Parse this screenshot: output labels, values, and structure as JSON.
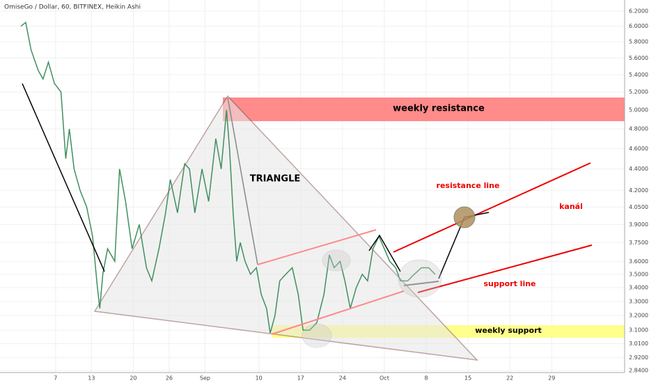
{
  "chart_data": {
    "type": "line",
    "title": "OmiseGo / Dollar, 60, BITFINEX, Heikin Ashi",
    "annotations": [
      "weekly resistance",
      "TRIANGLE",
      "resistance line",
      "kanál",
      "support line",
      "weekly support"
    ],
    "color": "#3f8f5f",
    "log_scale": true,
    "grid": true,
    "x": [
      0.2,
      1.0,
      1.9,
      3.1,
      3.9,
      4.8,
      5.8,
      6.9,
      7.7,
      8.3,
      9.1,
      10.1,
      11.2,
      12.2,
      13.0,
      13.4,
      13.9,
      14.7,
      15.9,
      16.7,
      17.7,
      18.8,
      20.0,
      21.2,
      22.1,
      23.3,
      24.4,
      25.2,
      26.4,
      27.6,
      28.4,
      29.3,
      30.5,
      31.6,
      32.8,
      33.7,
      34.6,
      35.1,
      35.7,
      36.3,
      36.9,
      37.7,
      38.6,
      39.6,
      40.4,
      41.3,
      41.9,
      42.7,
      43.5,
      44.5,
      45.6,
      46.6,
      47.4,
      48.5,
      49.7,
      50.9,
      51.8,
      52.6,
      53.6,
      54.4,
      55.3,
      56.3,
      57.3,
      58.2,
      59.1,
      60.1,
      61.0,
      61.9,
      62.9,
      63.7,
      64.9,
      66.0,
      67.2,
      68.4,
      69.5
    ],
    "values": [
      6.0,
      6.05,
      5.7,
      5.45,
      5.35,
      5.55,
      5.3,
      5.2,
      4.5,
      4.8,
      4.4,
      4.2,
      4.05,
      3.8,
      3.4,
      3.25,
      3.5,
      3.7,
      3.6,
      4.4,
      4.1,
      3.7,
      3.9,
      3.55,
      3.45,
      3.7,
      4.0,
      4.3,
      4.0,
      4.45,
      4.4,
      4.0,
      4.4,
      4.1,
      4.7,
      4.4,
      5.0,
      4.6,
      4.0,
      3.6,
      3.75,
      3.6,
      3.5,
      3.55,
      3.35,
      3.25,
      3.08,
      3.2,
      3.45,
      3.5,
      3.55,
      3.35,
      3.1,
      3.1,
      3.15,
      3.35,
      3.65,
      3.55,
      3.6,
      3.45,
      3.25,
      3.4,
      3.5,
      3.45,
      3.7,
      3.8,
      3.7,
      3.6,
      3.55,
      3.45,
      3.45,
      3.5,
      3.55,
      3.55,
      3.5
    ],
    "xlim": [
      -3.3,
      101.2
    ],
    "xticks": [
      {
        "value": 6,
        "label": "7"
      },
      {
        "value": 12,
        "label": "13"
      },
      {
        "value": 19,
        "label": "20"
      },
      {
        "value": 25,
        "label": "26"
      },
      {
        "value": 31,
        "label": "Sep"
      },
      {
        "value": 40,
        "label": "10"
      },
      {
        "value": 47,
        "label": "17"
      },
      {
        "value": 54,
        "label": "24"
      },
      {
        "value": 61,
        "label": "Oct"
      },
      {
        "value": 68,
        "label": "8"
      },
      {
        "value": 75,
        "label": "15"
      },
      {
        "value": 82,
        "label": "22"
      },
      {
        "value": 89,
        "label": "29"
      }
    ],
    "ylim": [
      2.827,
      6.352
    ],
    "yticks": [
      {
        "value": 2.84,
        "label": "2.8400"
      },
      {
        "value": 2.92,
        "label": "2.9200"
      },
      {
        "value": 3.01,
        "label": "3.0100"
      },
      {
        "value": 3.1,
        "label": "3.1000"
      },
      {
        "value": 3.2,
        "label": "3.2000"
      },
      {
        "value": 3.3,
        "label": "3.3000"
      },
      {
        "value": 3.4,
        "label": "3.4000"
      },
      {
        "value": 3.5,
        "label": "3.5000"
      },
      {
        "value": 3.6,
        "label": "3.6000"
      },
      {
        "value": 3.75,
        "label": "3.7500"
      },
      {
        "value": 3.9,
        "label": "3.9000"
      },
      {
        "value": 4.05,
        "label": "4.0500"
      },
      {
        "value": 4.2,
        "label": "4.2000"
      },
      {
        "value": 4.4,
        "label": "4.4000"
      },
      {
        "value": 4.6,
        "label": "4.6000"
      },
      {
        "value": 4.8,
        "label": "4.8000"
      },
      {
        "value": 5.0,
        "label": "5.0000"
      },
      {
        "value": 5.2,
        "label": "5.2000"
      },
      {
        "value": 5.4,
        "label": "5.4000"
      },
      {
        "value": 5.6,
        "label": "5.6000"
      },
      {
        "value": 5.8,
        "label": "5.8000"
      },
      {
        "value": 6.0,
        "label": "6.0000"
      },
      {
        "value": 6.2,
        "label": "6.2000"
      }
    ]
  }
}
